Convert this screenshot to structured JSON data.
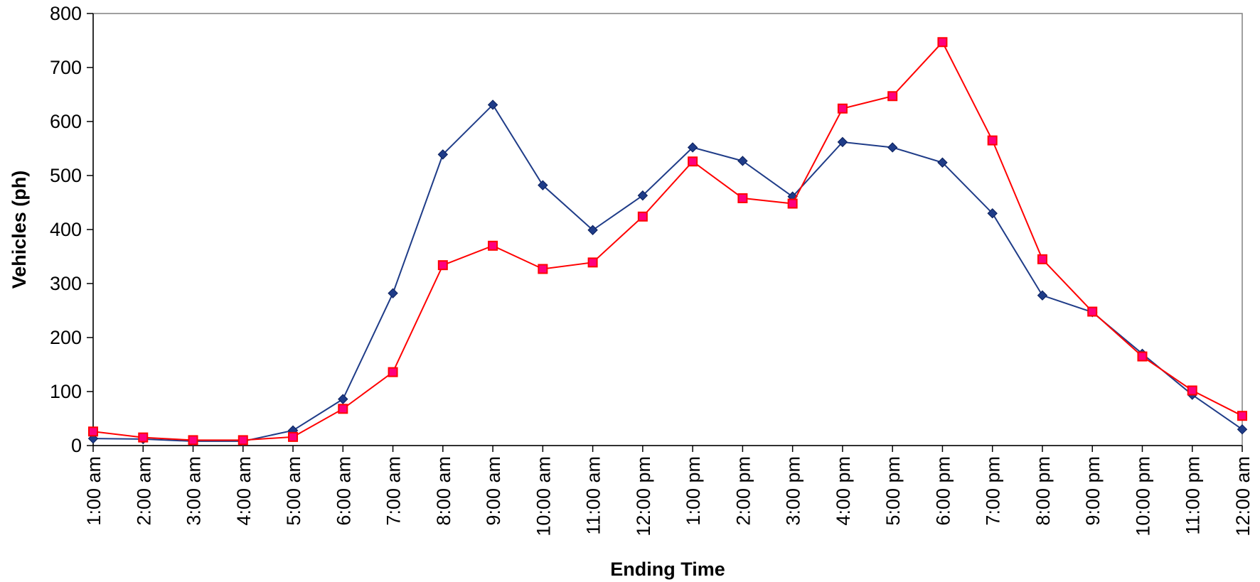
{
  "chart_data": {
    "type": "line",
    "title": "",
    "xlabel": "Ending Time",
    "ylabel": "Vehicles (ph)",
    "ylim": [
      0,
      800
    ],
    "yticks": [
      "0",
      "100",
      "200",
      "300",
      "400",
      "500",
      "600",
      "700",
      "800"
    ],
    "grid": false,
    "legend": "none",
    "categories": [
      "1:00 am",
      "2:00 am",
      "3:00 am",
      "4:00 am",
      "5:00 am",
      "6:00 am",
      "7:00 am",
      "8:00 am",
      "9:00 am",
      "10:00 am",
      "11:00 am",
      "12:00 pm",
      "1:00 pm",
      "2:00 pm",
      "3:00 pm",
      "4:00 pm",
      "5:00 pm",
      "6:00 pm",
      "7:00 pm",
      "8:00 pm",
      "9:00 pm",
      "10:00 pm",
      "11:00 pm",
      "12:00 am"
    ],
    "series": [
      {
        "color": "#1F3C88",
        "marker": "diamond",
        "values": [
          13,
          12,
          8,
          8,
          28,
          86,
          282,
          539,
          631,
          482,
          399,
          463,
          552,
          527,
          461,
          562,
          552,
          524,
          430,
          278,
          247,
          170,
          94,
          30
        ]
      },
      {
        "color": "#FF0000",
        "markerFill": "#FF007F",
        "marker": "square",
        "values": [
          26,
          15,
          10,
          10,
          16,
          68,
          136,
          334,
          370,
          327,
          339,
          424,
          526,
          458,
          448,
          624,
          647,
          747,
          565,
          345,
          248,
          165,
          102,
          55
        ]
      }
    ]
  }
}
